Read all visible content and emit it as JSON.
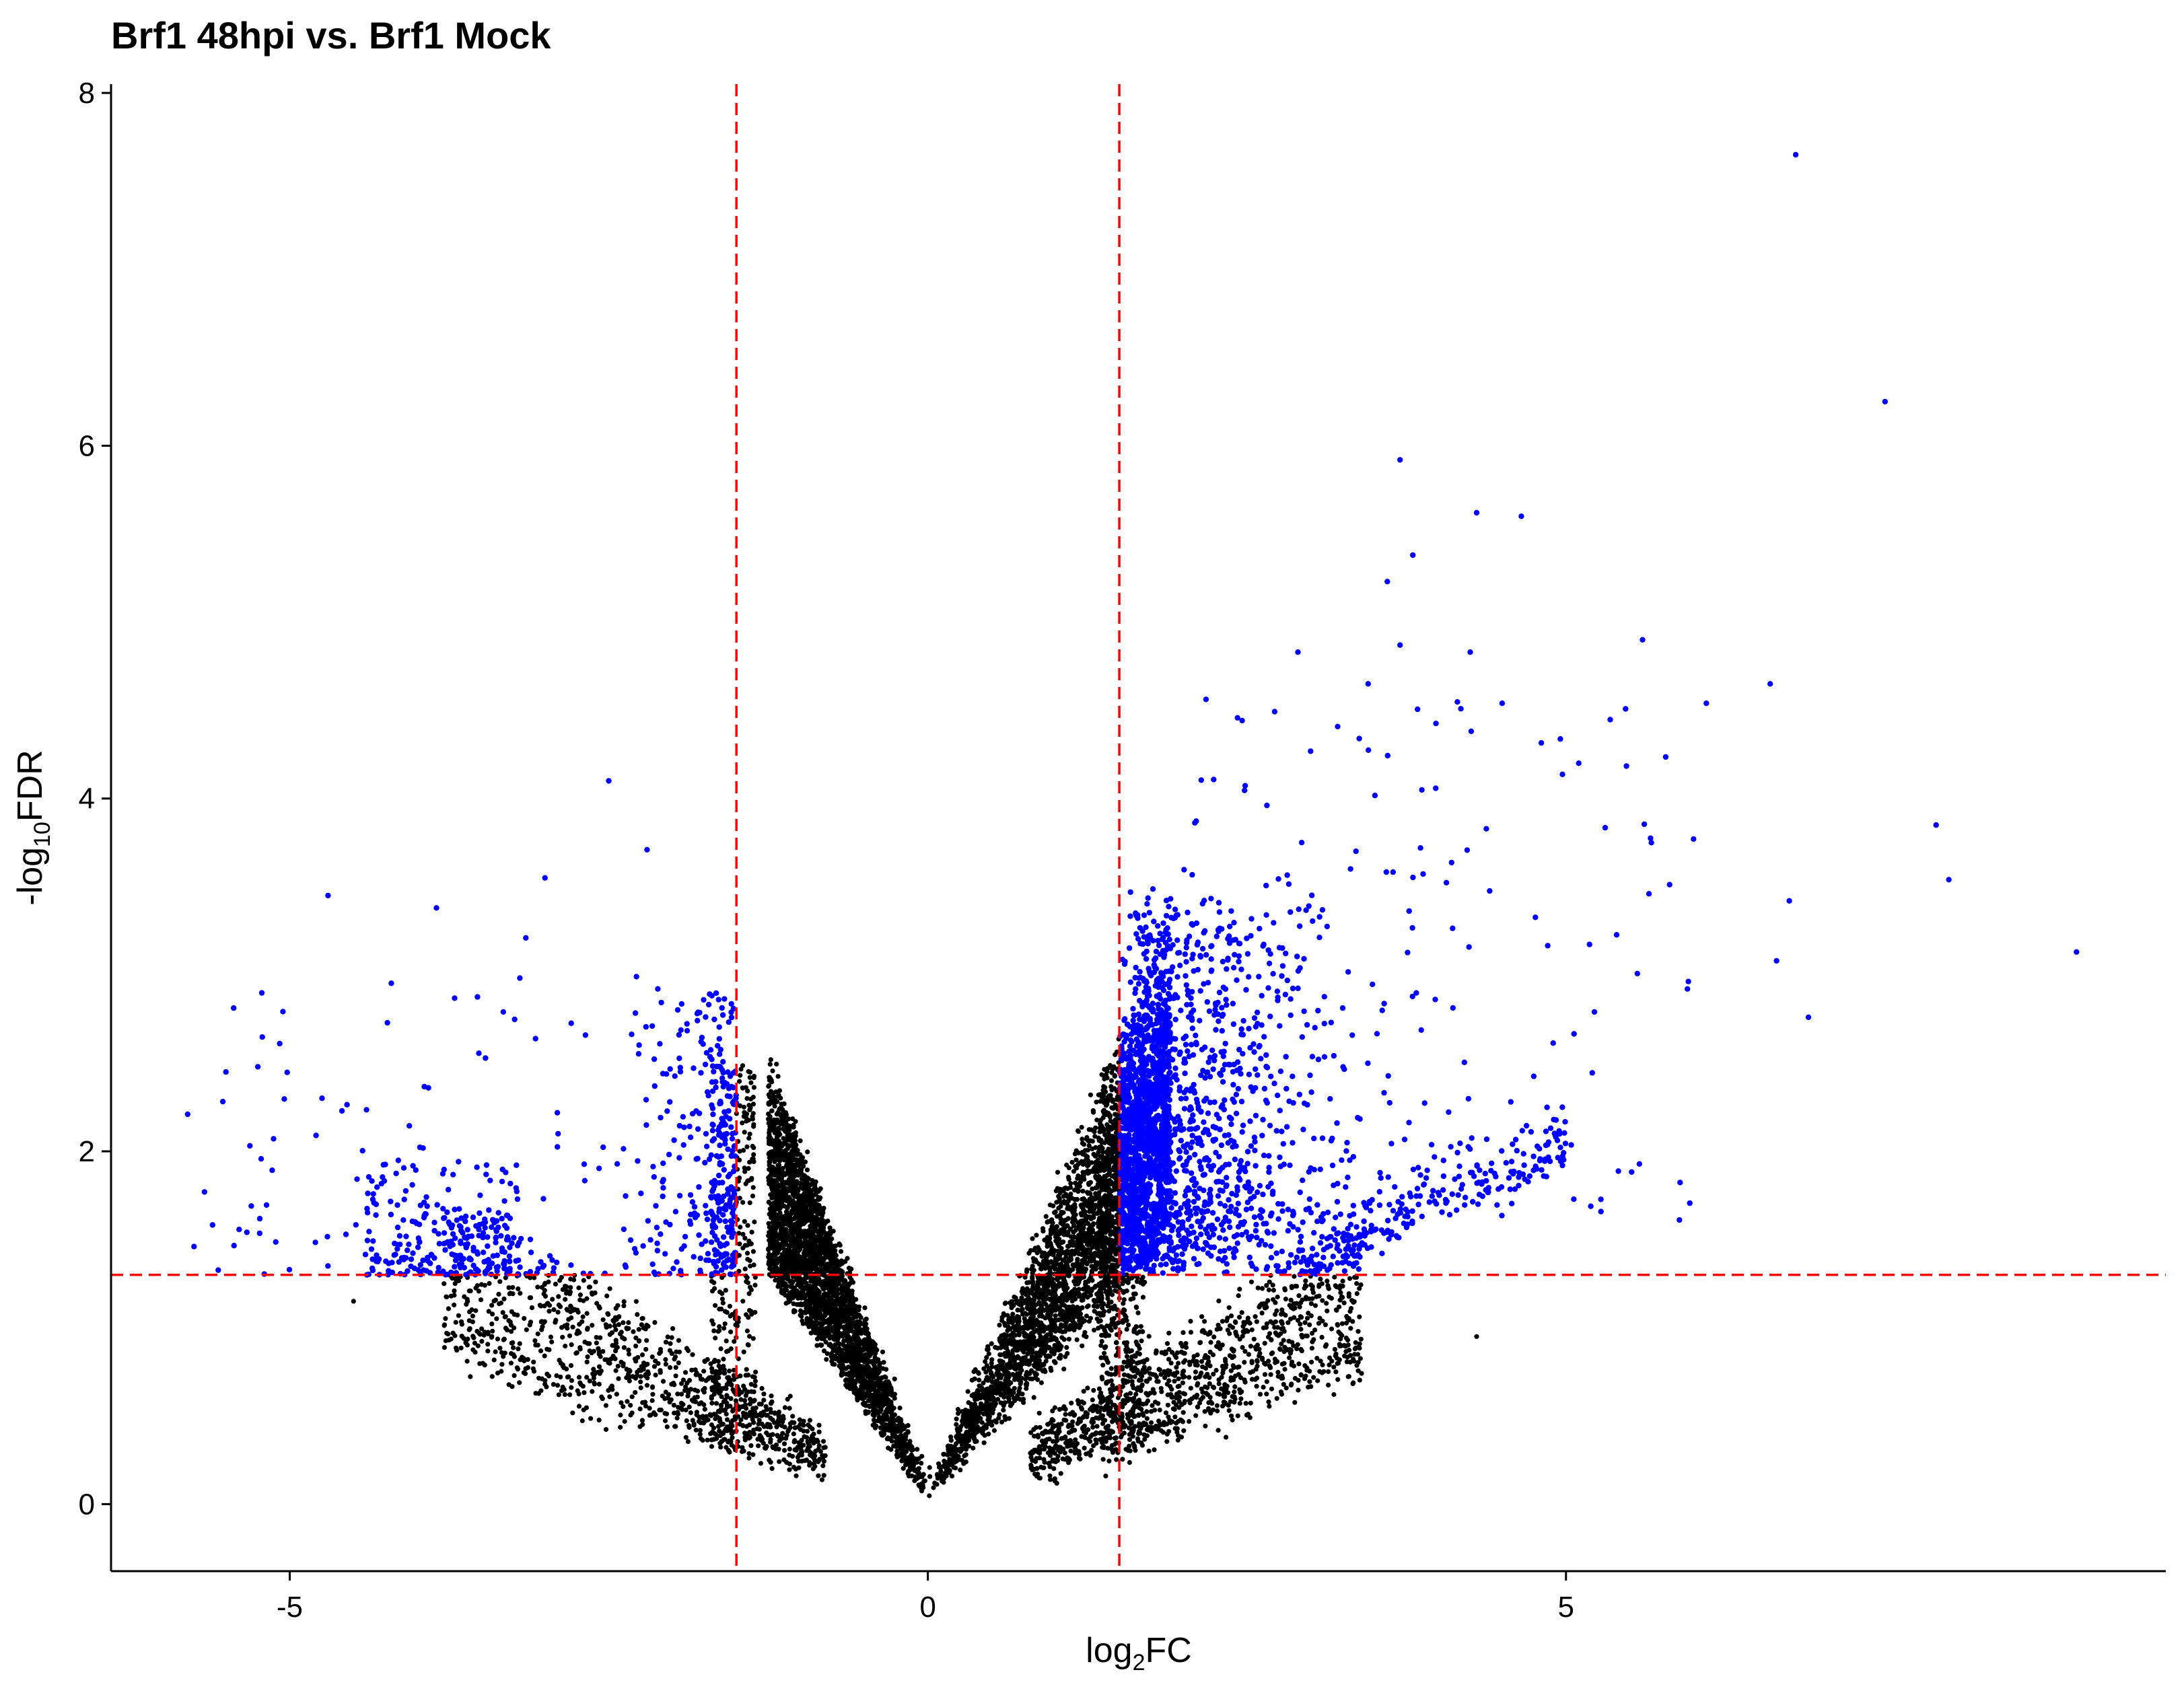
{
  "chart_data": {
    "type": "scatter",
    "title": "Brf1 48hpi vs. Brf1 Mock",
    "xlabel": {
      "main": "log",
      "sub": "2",
      "tail": "FC"
    },
    "ylabel": {
      "main": "-log",
      "sub": "10",
      "tail": "FDR"
    },
    "xlim": [
      -6.4,
      9.7
    ],
    "ylim": [
      -0.38,
      8.05
    ],
    "xticks": [
      -5,
      0,
      5
    ],
    "xtick_labels": [
      "-5",
      "0",
      "5"
    ],
    "yticks": [
      0,
      2,
      4,
      6,
      8
    ],
    "ytick_labels": [
      "0",
      "2",
      "4",
      "6",
      "8"
    ],
    "thresholds": {
      "log2fc": [
        -1.5,
        1.5
      ],
      "neg_log10_fdr": 1.3
    },
    "colors": {
      "significant": "#0000ff",
      "not_significant": "#000000",
      "threshold_line": "#ff0000"
    },
    "legend": "none",
    "grid": false,
    "notable_points": [
      {
        "x": 6.8,
        "y": 7.65
      },
      {
        "x": 7.5,
        "y": 6.25
      },
      {
        "x": 3.7,
        "y": 5.92
      },
      {
        "x": 4.3,
        "y": 5.62
      },
      {
        "x": 4.65,
        "y": 5.6
      },
      {
        "x": 3.8,
        "y": 5.38
      },
      {
        "x": 3.6,
        "y": 5.23
      },
      {
        "x": 5.6,
        "y": 4.9
      },
      {
        "x": 3.7,
        "y": 4.87
      },
      {
        "x": 2.9,
        "y": 4.83
      },
      {
        "x": 4.25,
        "y": 4.83
      },
      {
        "x": 6.6,
        "y": 4.65
      },
      {
        "x": 3.45,
        "y": 4.65
      },
      {
        "x": 6.1,
        "y": 4.54
      },
      {
        "x": 4.5,
        "y": 4.54
      },
      {
        "x": 5.1,
        "y": 4.2
      },
      {
        "x": 7.9,
        "y": 3.85
      },
      {
        "x": 8.0,
        "y": 3.54
      },
      {
        "x": 5.65,
        "y": 3.46
      },
      {
        "x": 6.75,
        "y": 3.42
      },
      {
        "x": 9.0,
        "y": 3.13
      },
      {
        "x": 6.65,
        "y": 3.08
      },
      {
        "x": 6.9,
        "y": 2.76
      },
      {
        "x": -2.5,
        "y": 4.1
      },
      {
        "x": -2.2,
        "y": 3.71
      },
      {
        "x": -3.0,
        "y": 3.55
      },
      {
        "x": -4.7,
        "y": 3.45
      },
      {
        "x": -3.85,
        "y": 3.38
      },
      {
        "x": -3.15,
        "y": 3.21
      },
      {
        "x": -5.8,
        "y": 2.21
      },
      {
        "x": -5.5,
        "y": 2.45
      },
      {
        "x": -5.75,
        "y": 1.46
      },
      {
        "x": -4.5,
        "y": 1.15
      },
      {
        "x": 4.3,
        "y": 0.95
      }
    ]
  }
}
